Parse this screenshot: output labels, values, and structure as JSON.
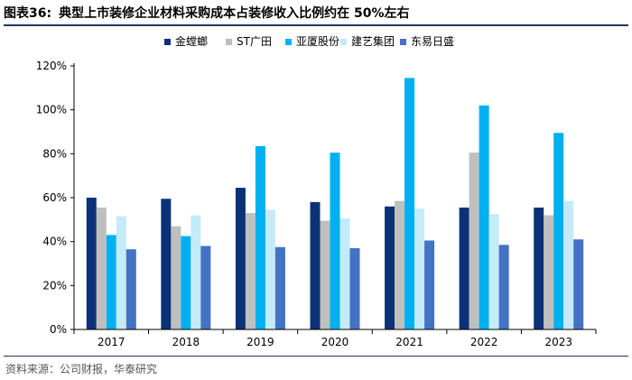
{
  "header": {
    "figure_label": "图表36:",
    "title": "典型上市装修企业材料采购成本占装修收入比例约在 50%左右"
  },
  "footer": {
    "source": "资料来源：公司财报，华泰研究"
  },
  "chart_data": {
    "type": "bar",
    "title": "典型上市装修企业材料采购成本占装修收入比例约在 50%左右",
    "xlabel": "",
    "ylabel": "",
    "categories": [
      "2017",
      "2018",
      "2019",
      "2020",
      "2021",
      "2022",
      "2023"
    ],
    "ylim": [
      0,
      120
    ],
    "yticks": [
      0,
      20,
      40,
      60,
      80,
      100,
      120
    ],
    "ytick_labels": [
      "0%",
      "20%",
      "40%",
      "60%",
      "80%",
      "100%",
      "120%"
    ],
    "legend_position": "top",
    "grid": false,
    "series": [
      {
        "name": "金螳螂",
        "color": "#0b3278",
        "values": [
          60,
          59.5,
          64.5,
          58,
          56,
          55.5,
          55.5
        ]
      },
      {
        "name": "ST广田",
        "color": "#bfbfbf",
        "values": [
          55.5,
          47,
          53,
          49.5,
          58.5,
          80.5,
          52
        ]
      },
      {
        "name": "亚厦股份",
        "color": "#00b0f0",
        "values": [
          43,
          42.5,
          83.5,
          80.5,
          114.5,
          102,
          89.5
        ]
      },
      {
        "name": "建艺集团",
        "color": "#c5eaf8",
        "values": [
          51.5,
          52,
          54.5,
          50.5,
          55,
          52.5,
          58.5
        ]
      },
      {
        "name": "东易日盛",
        "color": "#4472c4",
        "values": [
          36.5,
          38,
          37.5,
          37,
          40.5,
          38.5,
          41
        ]
      }
    ]
  }
}
